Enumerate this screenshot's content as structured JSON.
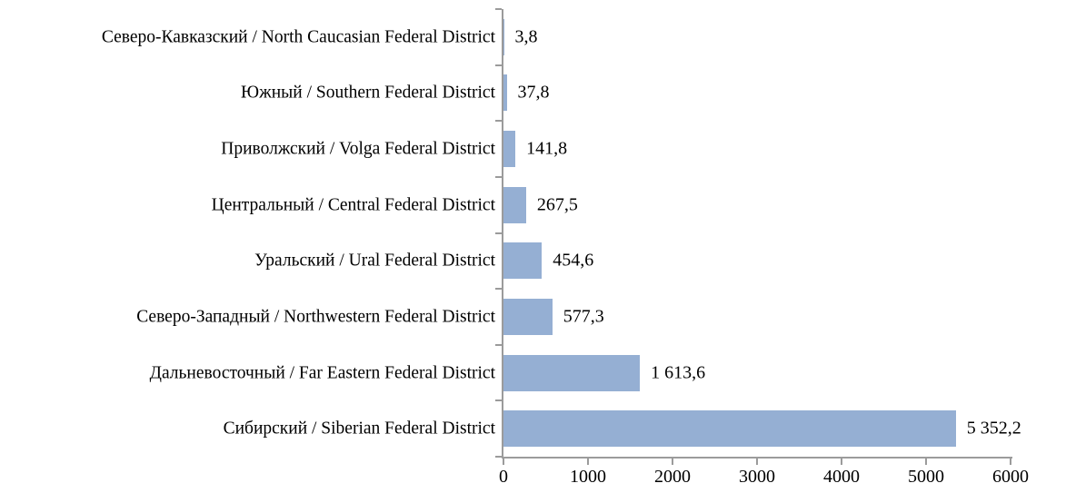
{
  "chart_data": {
    "type": "bar",
    "orientation": "horizontal",
    "title": "",
    "xlabel": "",
    "ylabel": "",
    "categories": [
      "Северо-Кавказский / North Caucasian Federal District",
      "Южный / Southern Federal District",
      "Приволжский / Volga Federal District",
      "Центральный / Central Federal District",
      "Уральский / Ural Federal District",
      "Северо-Западный / Northwestern Federal District",
      "Дальневосточный / Far Eastern Federal District",
      "Сибирский / Siberian Federal District"
    ],
    "values": [
      3.8,
      37.8,
      141.8,
      267.5,
      454.6,
      577.3,
      1613.6,
      5352.2
    ],
    "value_labels": [
      "3,8",
      "37,8",
      "141,8",
      "267,5",
      "454,6",
      "577,3",
      "1 613,6",
      "5 352,2"
    ],
    "xlim": [
      0,
      6000
    ],
    "x_ticks": [
      0,
      1000,
      2000,
      3000,
      4000,
      5000,
      6000
    ],
    "x_tick_labels": [
      "0",
      "1000",
      "2000",
      "3000",
      "4000",
      "5000",
      "6000"
    ],
    "grid": false,
    "legend": false,
    "bar_color": "#95afd3",
    "axis_color": "#9b9b9b",
    "text_color": "#000000"
  }
}
